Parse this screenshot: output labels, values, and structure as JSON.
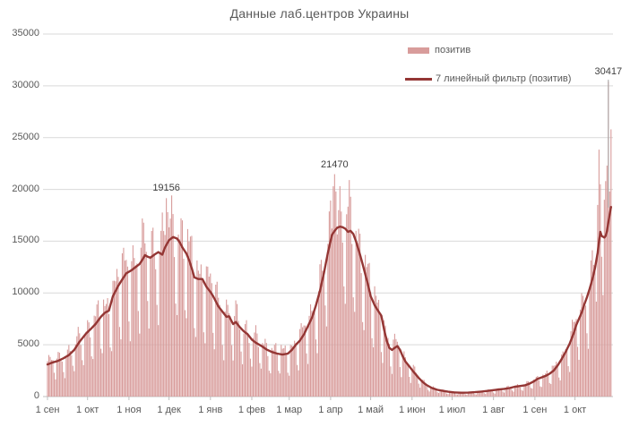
{
  "title": "Данные лаб.центров Украины",
  "legend": {
    "bar_label": "позитив",
    "line_label": "7 линейный фильтр (позитив)"
  },
  "colors": {
    "bar": "#D89C9B",
    "line": "#943634",
    "grid": "#D9D9D9",
    "axis": "#BFBFBF",
    "leader": "#A6A6A6",
    "axis_text": "#595959",
    "label_text": "#404040"
  },
  "chart_data": {
    "type": "bar",
    "title": "Данные лаб.центров Украины",
    "xlabel": "",
    "ylabel": "",
    "ylim": [
      0,
      35000
    ],
    "y_ticks": [
      0,
      5000,
      10000,
      15000,
      20000,
      25000,
      30000,
      35000
    ],
    "x_tick_labels": [
      "1 сен",
      "1 окт",
      "1 ноя",
      "1 дек",
      "1 янв",
      "1 фев",
      "1 мар",
      "1 апр",
      "1 май",
      "1 июн",
      "1 июл",
      "1 авг",
      "1 сен",
      "1 окт"
    ],
    "x_tick_days": [
      0,
      30,
      61,
      91,
      122,
      153,
      181,
      212,
      242,
      273,
      303,
      334,
      365,
      395
    ],
    "days_total": 423,
    "legend_position": "top-right",
    "grid": "horizontal",
    "series": [
      {
        "name": "позитив",
        "type": "bar",
        "derive_from": "7-filter line",
        "weekday_factors": [
          1.1,
          1.16,
          1.18,
          1.12,
          0.98,
          0.62,
          0.5
        ],
        "jitter": {
          "a1": 0.08,
          "f1": 1.7,
          "a2": 0.05,
          "f2": 0.37
        },
        "overrides": {
          "89": 19156,
          "90": 17800,
          "88": 15600,
          "214": 20300,
          "215": 21470,
          "216": 19800,
          "412": 18500,
          "413": 23839,
          "414": 20500,
          "415": 13500,
          "416": 9800,
          "417": 19000,
          "418": 20800,
          "419": 22300,
          "420": 30417,
          "421": 19800,
          "422": 25800
        }
      },
      {
        "name": "7 линейный фильтр (позитив)",
        "type": "line",
        "points": [
          [
            0,
            3100
          ],
          [
            4,
            3300
          ],
          [
            8,
            3450
          ],
          [
            12,
            3700
          ],
          [
            16,
            4000
          ],
          [
            20,
            4500
          ],
          [
            24,
            5300
          ],
          [
            29,
            6100
          ],
          [
            33,
            6600
          ],
          [
            36,
            7000
          ],
          [
            40,
            7700
          ],
          [
            43,
            8100
          ],
          [
            46,
            8300
          ],
          [
            49,
            9700
          ],
          [
            53,
            10700
          ],
          [
            56,
            11300
          ],
          [
            59,
            11900
          ],
          [
            63,
            12200
          ],
          [
            65,
            12400
          ],
          [
            69,
            12800
          ],
          [
            71,
            13200
          ],
          [
            73,
            13650
          ],
          [
            75,
            13500
          ],
          [
            77,
            13400
          ],
          [
            80,
            13700
          ],
          [
            83,
            13950
          ],
          [
            86,
            13700
          ],
          [
            88,
            14400
          ],
          [
            91,
            15100
          ],
          [
            94,
            15400
          ],
          [
            97,
            15250
          ],
          [
            99,
            14900
          ],
          [
            101,
            14400
          ],
          [
            104,
            13800
          ],
          [
            106,
            13200
          ],
          [
            108,
            12400
          ],
          [
            110,
            11500
          ],
          [
            113,
            11350
          ],
          [
            116,
            11350
          ],
          [
            119,
            10600
          ],
          [
            122,
            10100
          ],
          [
            124,
            9700
          ],
          [
            126,
            9200
          ],
          [
            128,
            8700
          ],
          [
            131,
            8200
          ],
          [
            134,
            7700
          ],
          [
            136,
            7750
          ],
          [
            139,
            7000
          ],
          [
            141,
            7200
          ],
          [
            144,
            6700
          ],
          [
            147,
            6300
          ],
          [
            150,
            6000
          ],
          [
            153,
            5500
          ],
          [
            156,
            5200
          ],
          [
            160,
            4900
          ],
          [
            164,
            4550
          ],
          [
            168,
            4300
          ],
          [
            172,
            4150
          ],
          [
            176,
            4050
          ],
          [
            180,
            4150
          ],
          [
            183,
            4500
          ],
          [
            186,
            5000
          ],
          [
            189,
            5400
          ],
          [
            192,
            6000
          ],
          [
            195,
            6800
          ],
          [
            198,
            7600
          ],
          [
            201,
            8800
          ],
          [
            204,
            10200
          ],
          [
            207,
            11900
          ],
          [
            210,
            13900
          ],
          [
            213,
            15600
          ],
          [
            215,
            16000
          ],
          [
            217,
            16300
          ],
          [
            219,
            16400
          ],
          [
            221,
            16350
          ],
          [
            223,
            16200
          ],
          [
            225,
            15900
          ],
          [
            227,
            16000
          ],
          [
            229,
            15700
          ],
          [
            231,
            15000
          ],
          [
            234,
            13700
          ],
          [
            236,
            12800
          ],
          [
            238,
            11800
          ],
          [
            240,
            10800
          ],
          [
            242,
            9700
          ],
          [
            245,
            8800
          ],
          [
            248,
            8200
          ],
          [
            250,
            7800
          ],
          [
            252,
            6500
          ],
          [
            254,
            5400
          ],
          [
            256,
            4700
          ],
          [
            258,
            4500
          ],
          [
            260,
            4700
          ],
          [
            262,
            4870
          ],
          [
            264,
            4500
          ],
          [
            266,
            3900
          ],
          [
            268,
            3400
          ],
          [
            271,
            2900
          ],
          [
            274,
            2400
          ],
          [
            278,
            1800
          ],
          [
            281,
            1400
          ],
          [
            284,
            1100
          ],
          [
            288,
            820
          ],
          [
            292,
            650
          ],
          [
            296,
            550
          ],
          [
            300,
            470
          ],
          [
            305,
            400
          ],
          [
            310,
            370
          ],
          [
            315,
            380
          ],
          [
            320,
            420
          ],
          [
            325,
            480
          ],
          [
            330,
            550
          ],
          [
            334,
            620
          ],
          [
            338,
            680
          ],
          [
            342,
            740
          ],
          [
            346,
            820
          ],
          [
            350,
            950
          ],
          [
            354,
            1020
          ],
          [
            358,
            1100
          ],
          [
            361,
            1250
          ],
          [
            364,
            1450
          ],
          [
            367,
            1700
          ],
          [
            370,
            1850
          ],
          [
            373,
            2000
          ],
          [
            376,
            2200
          ],
          [
            379,
            2500
          ],
          [
            382,
            3000
          ],
          [
            385,
            3600
          ],
          [
            388,
            4300
          ],
          [
            391,
            5100
          ],
          [
            394,
            6100
          ],
          [
            396,
            6900
          ],
          [
            398,
            7500
          ],
          [
            400,
            8100
          ],
          [
            402,
            8900
          ],
          [
            404,
            9600
          ],
          [
            406,
            10400
          ],
          [
            408,
            11300
          ],
          [
            410,
            12400
          ],
          [
            412,
            13900
          ],
          [
            413,
            15000
          ],
          [
            414,
            15900
          ],
          [
            415,
            15500
          ],
          [
            417,
            15350
          ],
          [
            418,
            15500
          ],
          [
            419,
            16000
          ],
          [
            420,
            16800
          ],
          [
            421,
            17600
          ],
          [
            422,
            18300
          ]
        ]
      }
    ],
    "annotations": [
      {
        "label": "19156",
        "day": 89,
        "value": 19156,
        "leader": false
      },
      {
        "label": "21470",
        "day": 215,
        "value": 21470,
        "leader": false
      },
      {
        "label": "30417",
        "day": 420,
        "value": 30417,
        "leader": true
      }
    ]
  }
}
